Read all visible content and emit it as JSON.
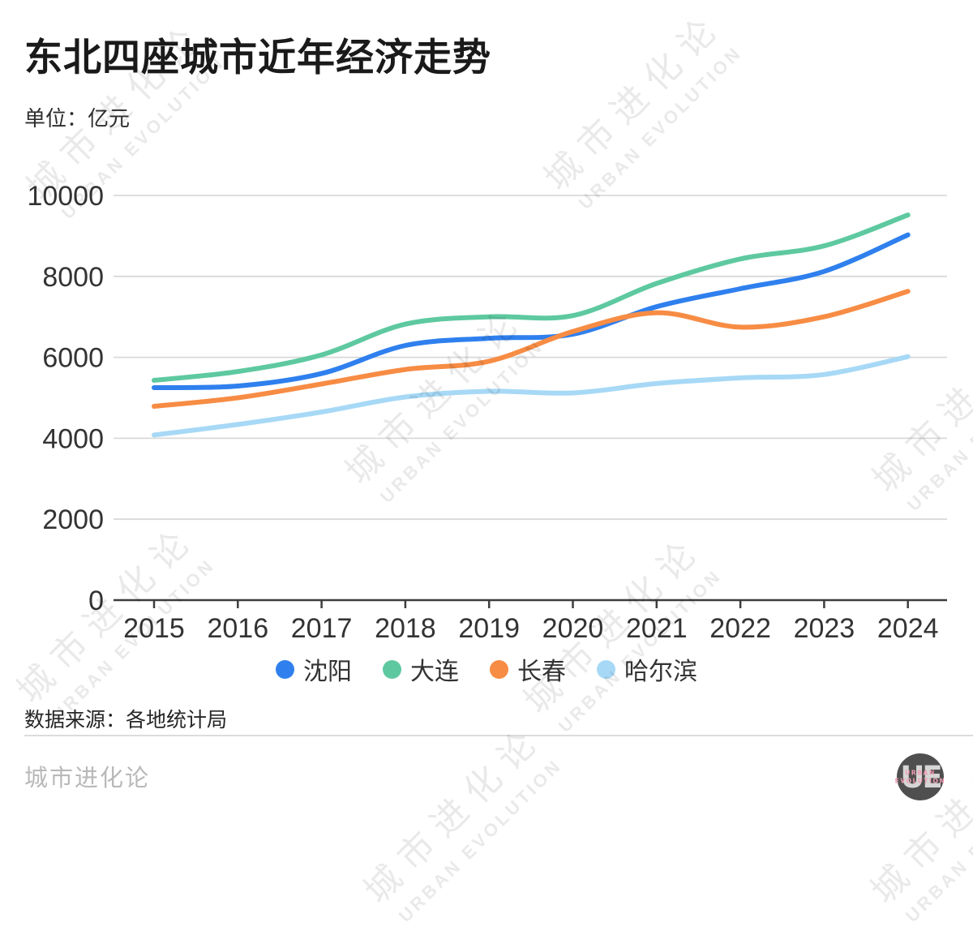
{
  "header": {
    "title": "东北四座城市近年经济走势",
    "unit_label": "单位：亿元"
  },
  "chart_data": {
    "type": "line",
    "title": "东北四座城市近年经济走势",
    "xlabel": "",
    "ylabel": "亿元",
    "x_labels": [
      "2015",
      "2016",
      "2017",
      "2018",
      "2019",
      "2020",
      "2021",
      "2022",
      "2023",
      "2024"
    ],
    "yticks": [
      0,
      2000,
      4000,
      6000,
      8000,
      10000
    ],
    "ylim": [
      0,
      10000
    ],
    "grid": true,
    "legend_position": "bottom",
    "series": [
      {
        "key": "shenyang",
        "name": "沈阳",
        "color": "#2f80ee",
        "values": [
          5250,
          5290,
          5600,
          6292,
          6470,
          6572,
          7250,
          7696,
          8122,
          9027
        ]
      },
      {
        "key": "dalian",
        "name": "大连",
        "color": "#5ec9a0",
        "values": [
          5430,
          5650,
          6060,
          6820,
          7002,
          7030,
          7826,
          8431,
          8753,
          9517
        ]
      },
      {
        "key": "changchun",
        "name": "长春",
        "color": "#f78c44",
        "values": [
          4790,
          5000,
          5340,
          5700,
          5904,
          6638,
          7103,
          6745,
          7002,
          7632
        ]
      },
      {
        "key": "haerbin",
        "name": "哈尔滨",
        "color": "#a7d9f6",
        "values": [
          4080,
          4340,
          4650,
          5020,
          5160,
          5120,
          5352,
          5490,
          5576,
          6017
        ]
      }
    ]
  },
  "footer": {
    "source": "数据来源：各地统计局",
    "brand": "城市进化论"
  },
  "watermark": {
    "line1": "城市进化论",
    "line2": "URBAN EVOLUTION"
  },
  "logo": {
    "monogram": "UE",
    "line1": "URBAN",
    "line2": "EVOLUTION"
  }
}
